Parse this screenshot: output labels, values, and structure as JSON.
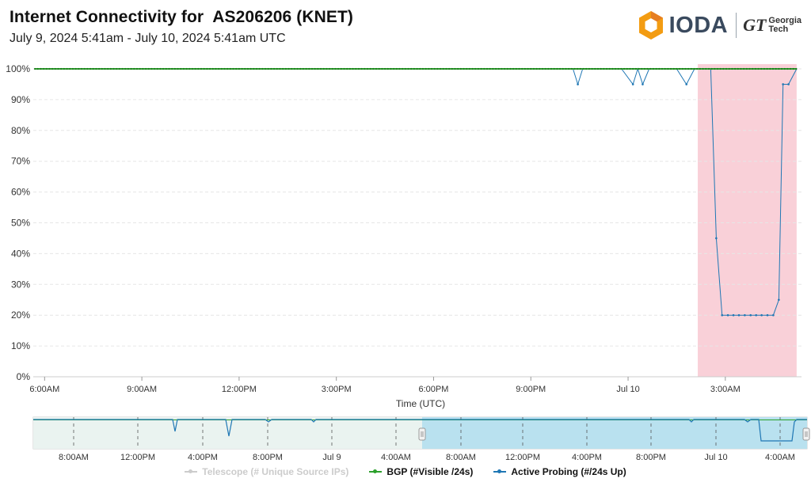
{
  "header": {
    "title": "Internet Connectivity for  AS206206 (KNET)",
    "subtitle": "July 9, 2024 5:41am - July 10, 2024 5:41am UTC"
  },
  "logo": {
    "ioda": "IODA",
    "gt_mark": "GT",
    "gt_line1": "Georgia",
    "gt_line2": "Tech"
  },
  "chart_data": {
    "type": "line",
    "xlabel": "Time (UTC)",
    "x_range_hours": [
      -0.35,
      23.35
    ],
    "x_ticks": [
      {
        "h": 0.0,
        "label": "6:00AM"
      },
      {
        "h": 3.0,
        "label": "9:00AM"
      },
      {
        "h": 6.0,
        "label": "12:00PM"
      },
      {
        "h": 9.0,
        "label": "3:00PM"
      },
      {
        "h": 12.0,
        "label": "6:00PM"
      },
      {
        "h": 15.0,
        "label": "9:00PM"
      },
      {
        "h": 18.0,
        "label": "Jul 10"
      },
      {
        "h": 21.0,
        "label": "3:00AM"
      }
    ],
    "y_range": [
      0,
      100
    ],
    "y_ticks": [
      "0%",
      "10%",
      "20%",
      "30%",
      "40%",
      "50%",
      "60%",
      "70%",
      "80%",
      "90%",
      "100%"
    ],
    "grid": true,
    "alert_band_hours": [
      20.15,
      23.2
    ],
    "series": [
      {
        "name": "BGP (#Visible /24s)",
        "color": "#2ca02c",
        "constant": 100,
        "start": -0.3,
        "end": 23.2
      },
      {
        "name": "Active Probing (#/24s Up)",
        "color": "#1f77b4",
        "points": [
          [
            -0.3,
            100
          ],
          [
            16.3,
            100
          ],
          [
            16.45,
            95
          ],
          [
            16.6,
            100
          ],
          [
            17.8,
            100
          ],
          [
            18.15,
            95
          ],
          [
            18.3,
            100
          ],
          [
            18.45,
            95
          ],
          [
            18.65,
            100
          ],
          [
            19.5,
            100
          ],
          [
            19.8,
            95
          ],
          [
            20.05,
            100
          ],
          [
            20.55,
            100
          ],
          [
            20.72,
            45
          ],
          [
            20.9,
            20
          ],
          [
            21.08,
            20
          ],
          [
            21.25,
            20
          ],
          [
            21.42,
            20
          ],
          [
            21.6,
            20
          ],
          [
            21.78,
            20
          ],
          [
            21.95,
            20
          ],
          [
            22.12,
            20
          ],
          [
            22.3,
            20
          ],
          [
            22.48,
            20
          ],
          [
            22.65,
            25
          ],
          [
            22.78,
            95
          ],
          [
            22.95,
            95
          ],
          [
            23.2,
            100
          ]
        ]
      }
    ],
    "navigator": {
      "x_ticks": [
        "8:00AM",
        "12:00PM",
        "4:00PM",
        "8:00PM",
        "Jul 9",
        "4:00AM",
        "8:00AM",
        "12:00PM",
        "4:00PM",
        "8:00PM",
        "Jul 10",
        "4:00AM"
      ]
    }
  },
  "legend": {
    "items": [
      {
        "label": "Telescope (# Unique Source IPs)",
        "color": "#cccccc",
        "enabled": false
      },
      {
        "label": "BGP (#Visible /24s)",
        "color": "#2ca02c",
        "enabled": true
      },
      {
        "label": "Active Probing (#/24s Up)",
        "color": "#1f77b4",
        "enabled": true
      }
    ]
  }
}
